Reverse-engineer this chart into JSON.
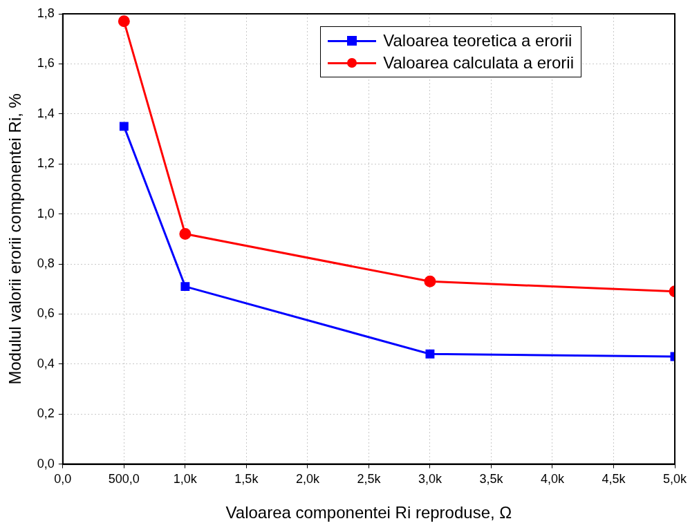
{
  "chart_data": {
    "type": "line",
    "xlabel": "Valoarea componentei Ri reproduse, Ω",
    "ylabel": "Modulul valorii erorii componentei Ri, %",
    "x": [
      500,
      1000,
      3000,
      5000
    ],
    "series": [
      {
        "name": "Valoarea teoretica a erorii",
        "color": "#0000ff",
        "marker": "square",
        "values": [
          1.35,
          0.71,
          0.44,
          0.43
        ]
      },
      {
        "name": "Valoarea calculata a erorii",
        "color": "#ff0000",
        "marker": "circle",
        "values": [
          1.77,
          0.92,
          0.73,
          0.69
        ]
      }
    ],
    "xlim": [
      0,
      5000
    ],
    "xticks": [
      {
        "value": 0,
        "label": "0,0"
      },
      {
        "value": 500,
        "label": "500,0"
      },
      {
        "value": 1000,
        "label": "1,0k"
      },
      {
        "value": 1500,
        "label": "1,5k"
      },
      {
        "value": 2000,
        "label": "2,0k"
      },
      {
        "value": 2500,
        "label": "2,5k"
      },
      {
        "value": 3000,
        "label": "3,0k"
      },
      {
        "value": 3500,
        "label": "3,5k"
      },
      {
        "value": 4000,
        "label": "4,0k"
      },
      {
        "value": 4500,
        "label": "4,5k"
      },
      {
        "value": 5000,
        "label": "5,0k"
      }
    ],
    "ylim": [
      0,
      1.8
    ],
    "yticks": [
      {
        "value": 0,
        "label": "0,0"
      },
      {
        "value": 0.2,
        "label": "0,2"
      },
      {
        "value": 0.4,
        "label": "0,4"
      },
      {
        "value": 0.6,
        "label": "0,6"
      },
      {
        "value": 0.8,
        "label": "0,8"
      },
      {
        "value": 1.0,
        "label": "1,0"
      },
      {
        "value": 1.2,
        "label": "1,2"
      },
      {
        "value": 1.4,
        "label": "1,4"
      },
      {
        "value": 1.6,
        "label": "1,6"
      },
      {
        "value": 1.8,
        "label": "1,8"
      }
    ],
    "grid": true,
    "legend": "top right",
    "line_style": "solid"
  }
}
